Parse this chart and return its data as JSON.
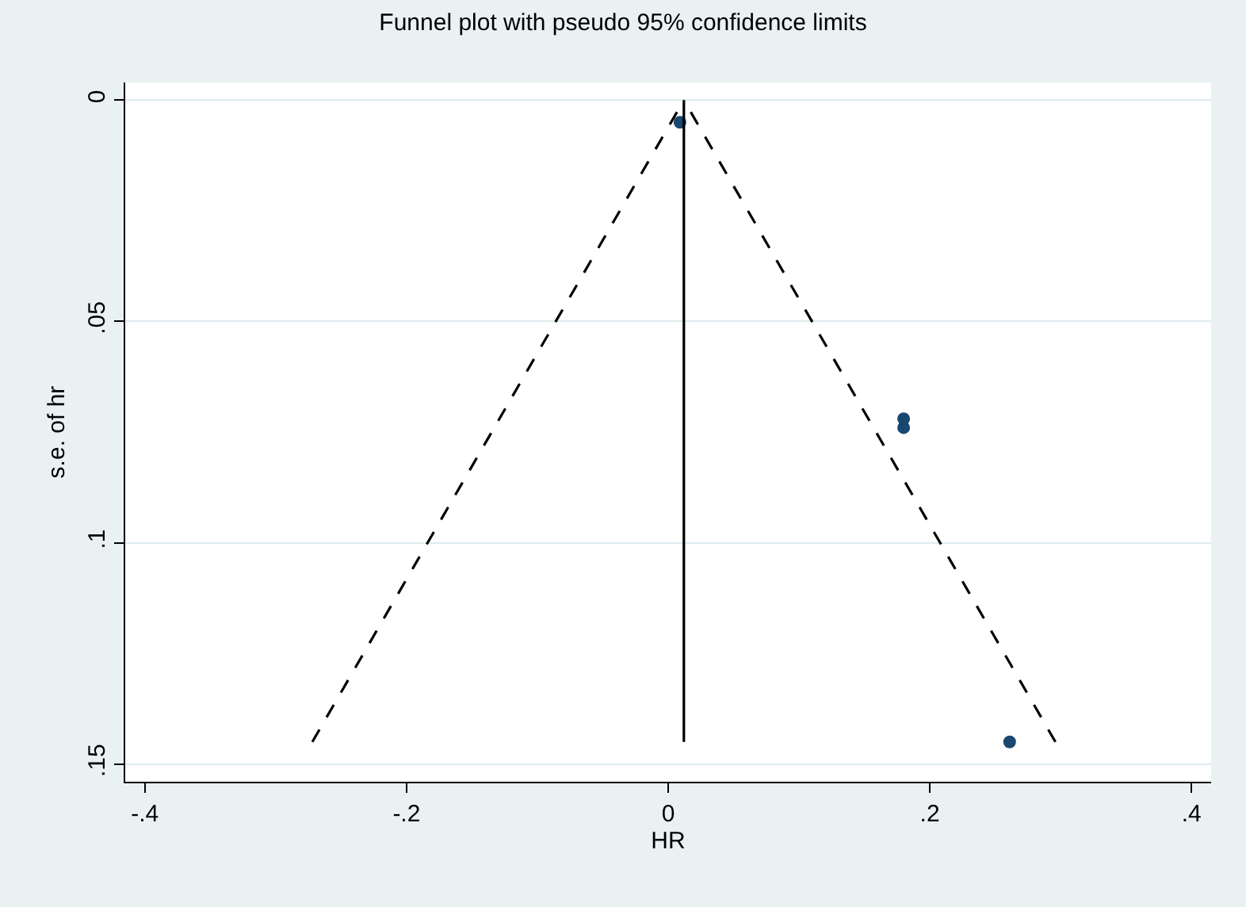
{
  "chart_data": {
    "type": "scatter",
    "title": "Funnel plot with pseudo 95% confidence limits",
    "xlabel": "HR",
    "ylabel": "s.e. of hr",
    "xlim": [
      -0.415,
      0.415
    ],
    "ylim": [
      0.154,
      -0.004
    ],
    "xticks": [
      {
        "value": -0.4,
        "label": "-.4"
      },
      {
        "value": -0.2,
        "label": "-.2"
      },
      0,
      {
        "value": 0.2,
        "label": ".2"
      },
      {
        "value": 0.4,
        "label": ".4"
      }
    ],
    "yticks": [
      0,
      {
        "value": 0.05,
        "label": ".05"
      },
      {
        "value": 0.1,
        "label": ".1"
      },
      {
        "value": 0.15,
        "label": ".15"
      }
    ],
    "grid": "y",
    "series": [
      {
        "color": "#1a476f",
        "marker": "circle",
        "x": [
          0.009,
          0.18,
          0.18,
          0.261
        ],
        "values": [
          0.005,
          0.072,
          0.074,
          0.145
        ]
      },
      {
        "type": "line",
        "color": "#000000",
        "marker": "none",
        "line_style": "dashed",
        "x": [
          -0.272,
          0.012
        ],
        "values": [
          0.145,
          0
        ]
      },
      {
        "type": "line",
        "color": "#000000",
        "marker": "none",
        "line_style": "dashed",
        "x": [
          0.296,
          0.012
        ],
        "values": [
          0.145,
          0
        ]
      },
      {
        "type": "line",
        "color": "#000000",
        "marker": "none",
        "line_style": "solid",
        "x": [
          0.012,
          0.012
        ],
        "values": [
          0,
          0.145
        ]
      }
    ]
  }
}
